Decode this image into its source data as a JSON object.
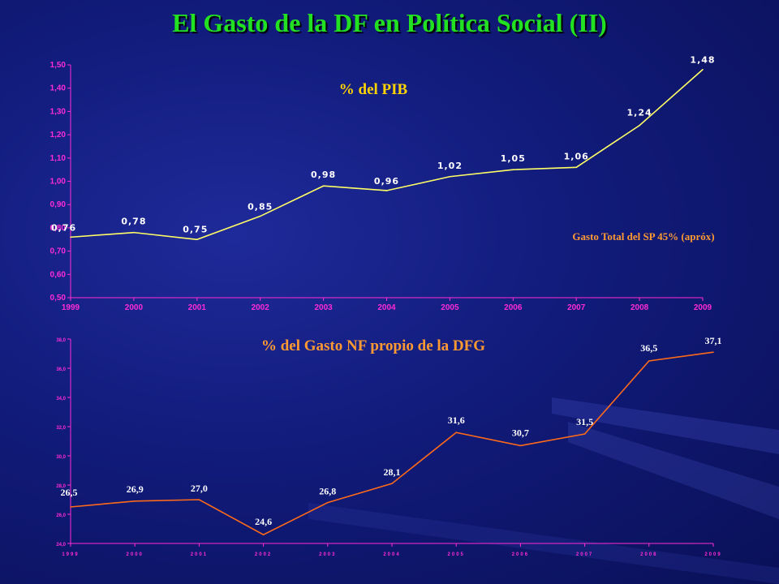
{
  "title": "El Gasto de la DF en Política Social (II)",
  "colors": {
    "title": "#22e022",
    "axis": "#ff2bd6",
    "line_top": "#ffff66",
    "line_bottom": "#ff6a1a",
    "labels": "#ffffff",
    "inner_title_top": "#ffd400",
    "inner_title_bottom": "#ff9a33"
  },
  "chart_data": [
    {
      "type": "line",
      "title": "% del PIB",
      "annotation": "Gasto Total del SP 45% (apróx)",
      "categories": [
        "1999",
        "2000",
        "2001",
        "2002",
        "2003",
        "2004",
        "2005",
        "2006",
        "2007",
        "2008",
        "2009"
      ],
      "values": [
        0.76,
        0.78,
        0.75,
        0.85,
        0.98,
        0.96,
        1.02,
        1.05,
        1.06,
        1.24,
        1.48
      ],
      "value_labels": [
        "0,76",
        "0,78",
        "0,75",
        "0,85",
        "0,98",
        "0,96",
        "1,02",
        "1,05",
        "1,06",
        "1,24",
        "1,48"
      ],
      "ylim": [
        0.5,
        1.5
      ],
      "y_ticks": [
        "0,50",
        "0,60",
        "0,70",
        "0,80",
        "0,90",
        "1,00",
        "1,10",
        "1,20",
        "1,30",
        "1,40",
        "1,50"
      ],
      "grid": false
    },
    {
      "type": "line",
      "title": "% del Gasto NF propio de la DFG",
      "categories": [
        "1999",
        "2000",
        "2001",
        "2002",
        "2003",
        "2004",
        "2005",
        "2006",
        "2007",
        "2008",
        "2009"
      ],
      "values": [
        26.5,
        26.9,
        27.0,
        24.6,
        26.8,
        28.1,
        31.6,
        30.7,
        31.5,
        36.5,
        37.1
      ],
      "value_labels": [
        "26,5",
        "26,9",
        "27,0",
        "24,6",
        "26,8",
        "28,1",
        "31,6",
        "30,7",
        "31,5",
        "36,5",
        "37,1"
      ],
      "ylim": [
        24,
        38
      ],
      "y_ticks": [
        "24,0",
        "26,0",
        "28,0",
        "30,0",
        "32,0",
        "34,0",
        "36,0",
        "38,0"
      ],
      "grid": false
    }
  ]
}
